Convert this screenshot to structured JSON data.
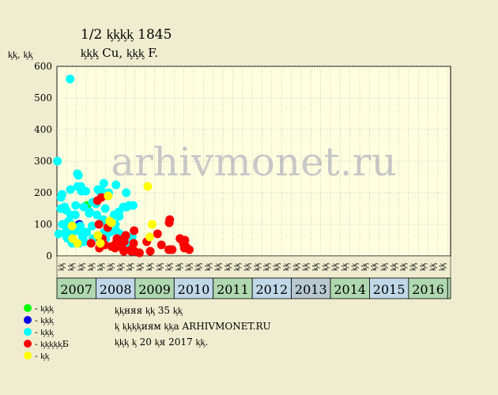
{
  "title": "1/2 ᶄᶄᶄᶄ 1845",
  "subtitle": "ᶄᶄᶄ Cu, ᶄᶄᶄ F.",
  "chart_data": {
    "type": "scatter",
    "ylabel": "ᶄᶄ, ᶄᶄ",
    "ylim": [
      0,
      600
    ],
    "yticks": [
      0,
      100,
      200,
      300,
      400,
      500,
      600
    ],
    "grid": true,
    "watermark": "arhivmonet.ru",
    "quarter_labels": [
      "ᶄᶄ",
      "ᶄᶄ",
      "ᶄᶄ",
      "ᶄᶄ"
    ],
    "years": [
      "2007",
      "2008",
      "2009",
      "2010",
      "2011",
      "2012",
      "2013",
      "2014",
      "2015",
      "2016"
    ],
    "year_colors": [
      "#b0d8b0",
      "#c0d8e8",
      "#b0d8b0",
      "#c0d8e8",
      "#b0d8b0",
      "#c0d8e8",
      "#b8c8d0",
      "#b0d8b0",
      "#c0d8e8",
      "#b0d8b0"
    ],
    "series": [
      {
        "color": "#00ff00",
        "points": [
          [
            3.08,
            160
          ],
          [
            5.57,
            30
          ]
        ]
      },
      {
        "color": "#0000ee",
        "points": [
          [
            2.29,
            100
          ]
        ]
      },
      {
        "color": "#00ffff",
        "points": [
          [
            0.05,
            300
          ],
          [
            0.18,
            70
          ],
          [
            0.4,
            150
          ],
          [
            0.42,
            185
          ],
          [
            0.52,
            195
          ],
          [
            0.55,
            100
          ],
          [
            0.8,
            155
          ],
          [
            0.85,
            100
          ],
          [
            0.9,
            75
          ],
          [
            0.95,
            145
          ],
          [
            1.0,
            60
          ],
          [
            1.05,
            80
          ],
          [
            1.1,
            55
          ],
          [
            1.15,
            100
          ],
          [
            1.2,
            110
          ],
          [
            1.35,
            560
          ],
          [
            1.38,
            210
          ],
          [
            1.42,
            130
          ],
          [
            1.45,
            100
          ],
          [
            1.5,
            65
          ],
          [
            1.55,
            40
          ],
          [
            1.8,
            80
          ],
          [
            1.88,
            130
          ],
          [
            1.92,
            160
          ],
          [
            2.0,
            90
          ],
          [
            2.05,
            40
          ],
          [
            2.1,
            260
          ],
          [
            2.12,
            220
          ],
          [
            2.2,
            255
          ],
          [
            2.25,
            40
          ],
          [
            2.4,
            95
          ],
          [
            2.45,
            220
          ],
          [
            2.5,
            205
          ],
          [
            2.55,
            70
          ],
          [
            2.6,
            80
          ],
          [
            2.65,
            60
          ],
          [
            2.75,
            155
          ],
          [
            2.8,
            45
          ],
          [
            2.95,
            205
          ],
          [
            3.05,
            75
          ],
          [
            3.3,
            135
          ],
          [
            3.35,
            140
          ],
          [
            3.6,
            95
          ],
          [
            3.65,
            170
          ],
          [
            3.7,
            55
          ],
          [
            4.0,
            165
          ],
          [
            4.1,
            130
          ],
          [
            4.2,
            210
          ],
          [
            4.4,
            205
          ],
          [
            4.5,
            210
          ],
          [
            4.65,
            110
          ],
          [
            4.75,
            115
          ],
          [
            4.8,
            230
          ],
          [
            4.85,
            75
          ],
          [
            4.95,
            150
          ],
          [
            5.0,
            55
          ],
          [
            5.3,
            200
          ],
          [
            5.45,
            75
          ],
          [
            5.55,
            110
          ],
          [
            5.85,
            130
          ],
          [
            5.98,
            100
          ],
          [
            6.05,
            225
          ],
          [
            6.08,
            80
          ],
          [
            6.35,
            140
          ],
          [
            6.38,
            125
          ],
          [
            6.45,
            70
          ],
          [
            6.8,
            155
          ],
          [
            7.05,
            40
          ],
          [
            7.1,
            200
          ],
          [
            7.15,
            155
          ],
          [
            7.4,
            160
          ],
          [
            7.7,
            60
          ],
          [
            7.8,
            160
          ]
        ]
      },
      {
        "color": "#ff0000",
        "points": [
          [
            3.5,
            40
          ],
          [
            4.15,
            175
          ],
          [
            4.3,
            100
          ],
          [
            4.35,
            25
          ],
          [
            4.45,
            55
          ],
          [
            4.55,
            185
          ],
          [
            4.65,
            55
          ],
          [
            4.9,
            35
          ],
          [
            5.2,
            90
          ],
          [
            5.6,
            30
          ],
          [
            5.95,
            25
          ],
          [
            6.05,
            40
          ],
          [
            6.15,
            55
          ],
          [
            6.5,
            30
          ],
          [
            6.8,
            20
          ],
          [
            6.85,
            15
          ],
          [
            6.9,
            45
          ],
          [
            6.95,
            60
          ],
          [
            7.05,
            65
          ],
          [
            7.55,
            20
          ],
          [
            7.6,
            15
          ],
          [
            7.85,
            40
          ],
          [
            7.9,
            80
          ],
          [
            7.95,
            15
          ],
          [
            8.45,
            10
          ],
          [
            9.2,
            45
          ],
          [
            9.55,
            15
          ],
          [
            10.3,
            70
          ],
          [
            10.7,
            35
          ],
          [
            11.45,
            20
          ],
          [
            11.5,
            105
          ],
          [
            11.55,
            115
          ],
          [
            11.75,
            20
          ],
          [
            11.8,
            20
          ],
          [
            12.6,
            55
          ],
          [
            12.95,
            40
          ],
          [
            13.0,
            35
          ],
          [
            13.05,
            25
          ],
          [
            13.1,
            50
          ],
          [
            13.2,
            30
          ],
          [
            13.55,
            20
          ]
        ]
      },
      {
        "color": "#ffff00",
        "points": [
          [
            1.55,
            95
          ],
          [
            1.6,
            55
          ],
          [
            2.1,
            40
          ],
          [
            4.2,
            65
          ],
          [
            4.45,
            40
          ],
          [
            5.25,
            190
          ],
          [
            5.4,
            110
          ],
          [
            5.6,
            105
          ],
          [
            9.3,
            220
          ],
          [
            9.5,
            60
          ],
          [
            9.75,
            100
          ]
        ]
      }
    ]
  },
  "legend": [
    {
      "label": "- ᶄᶄᶄ",
      "color": "#00ff00"
    },
    {
      "label": "- ᶄᶄᶄ",
      "color": "#0000ee"
    },
    {
      "label": "- ᶄᶄᶄ",
      "color": "#00ffff"
    },
    {
      "label": "- ᶄᶄᶄᶄᶄБ",
      "color": "#ff0000"
    },
    {
      "label": "- ᶄᶄ",
      "color": "#ffff00"
    }
  ],
  "notes": [
    "ᶄᶄняя ᶄᶄ 35 ᶄᶄ",
    "ᶄ ᶄᶄᶄᶄиям ᶄᶄа ARHIVMONET.RU",
    "ᶄᶄᶄ ᶄ 20 ᶄя 2017 ᶄᶄ."
  ]
}
